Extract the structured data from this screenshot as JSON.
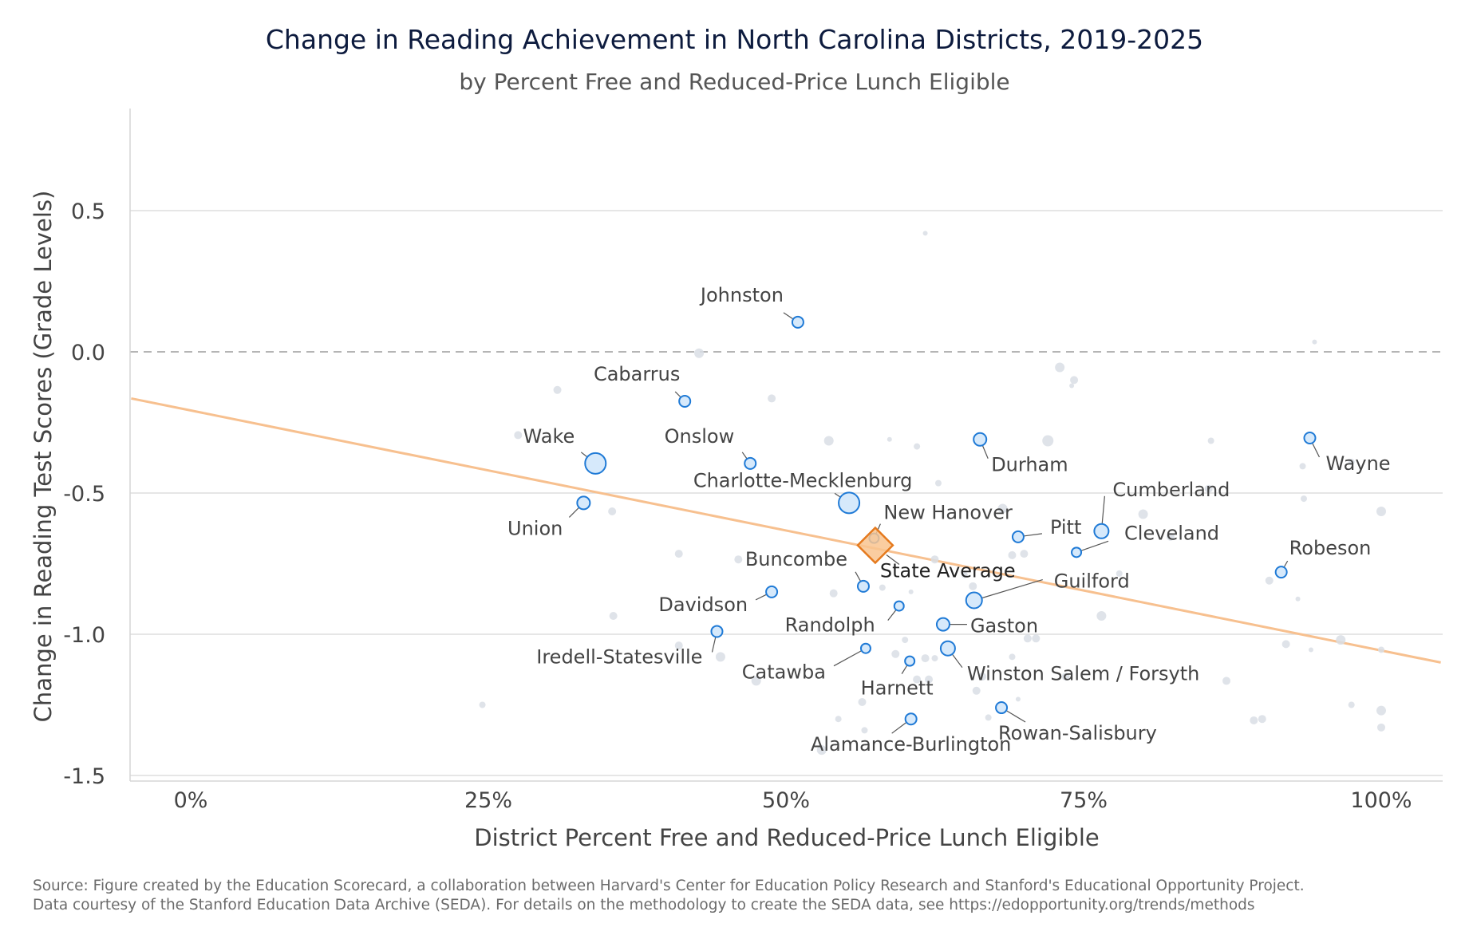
{
  "source": {
    "line1": "Source: Figure created by the Education Scorecard, a collaboration between Harvard's Center for Education Policy Research and Stanford's Educational Opportunity Project.",
    "line2": "Data courtesy of the Stanford Education Data Archive (SEDA). For details on the methodology to create the SEDA data, see https://edopportunity.org/trends/methods"
  },
  "colors": {
    "highlight_fill": "#d6e9fb",
    "highlight_stroke": "#1f7ad6",
    "background_point": "#d9dee5",
    "state_fill": "#f9c48f",
    "state_stroke": "#e57a1e",
    "trend": "#f7c08f",
    "grid": "#dddddd",
    "zero_line": "#b5b5b5"
  },
  "chart_data": {
    "type": "scatter",
    "title": "Change in Reading Achievement in North Carolina Districts, 2019-2025",
    "subtitle": "by Percent Free and Reduced-Price Lunch Eligible",
    "xlabel": "District Percent Free and Reduced-Price Lunch Eligible",
    "ylabel": "Change in Reading Test Scores (Grade Levels)",
    "xlim": [
      -0.05,
      1.05
    ],
    "ylim": [
      -1.52,
      0.87
    ],
    "xticks": [
      {
        "value": 0,
        "label": "0%"
      },
      {
        "value": 0.25,
        "label": "25%"
      },
      {
        "value": 0.5,
        "label": "50%"
      },
      {
        "value": 0.75,
        "label": "75%"
      },
      {
        "value": 1.0,
        "label": "100%"
      }
    ],
    "yticks": [
      {
        "value": 0.5,
        "label": "0.5"
      },
      {
        "value": 0.0,
        "label": "0.0"
      },
      {
        "value": -0.5,
        "label": "-0.5"
      },
      {
        "value": -1.0,
        "label": "-1.0"
      },
      {
        "value": -1.5,
        "label": "-1.5"
      }
    ],
    "grid": true,
    "reference_line": {
      "y": 0,
      "style": "dashed"
    },
    "trend_line": {
      "x": [
        -0.05,
        1.05
      ],
      "y": [
        -0.165,
        -1.1
      ]
    },
    "state_average": {
      "label": "State Average",
      "x": 0.575,
      "y": -0.685
    },
    "highlighted": [
      {
        "name": "Johnston",
        "x": 0.51,
        "y": 0.105,
        "size": 7
      },
      {
        "name": "Cabarrus",
        "x": 0.415,
        "y": -0.175,
        "size": 7
      },
      {
        "name": "Wake",
        "x": 0.34,
        "y": -0.395,
        "size": 13
      },
      {
        "name": "Onslow",
        "x": 0.47,
        "y": -0.395,
        "size": 7
      },
      {
        "name": "Union",
        "x": 0.33,
        "y": -0.535,
        "size": 8
      },
      {
        "name": "Charlotte-Mecklenburg",
        "x": 0.553,
        "y": -0.535,
        "size": 13
      },
      {
        "name": "New Hanover",
        "x": 0.574,
        "y": -0.66,
        "size": 6
      },
      {
        "name": "Durham",
        "x": 0.663,
        "y": -0.31,
        "size": 8
      },
      {
        "name": "Pitt",
        "x": 0.695,
        "y": -0.655,
        "size": 7
      },
      {
        "name": "Cumberland",
        "x": 0.765,
        "y": -0.635,
        "size": 9
      },
      {
        "name": "Cleveland",
        "x": 0.744,
        "y": -0.71,
        "size": 6
      },
      {
        "name": "Wayne",
        "x": 0.94,
        "y": -0.305,
        "size": 7
      },
      {
        "name": "Robeson",
        "x": 0.916,
        "y": -0.78,
        "size": 7
      },
      {
        "name": "Buncombe",
        "x": 0.565,
        "y": -0.83,
        "size": 7
      },
      {
        "name": "Guilford",
        "x": 0.658,
        "y": -0.88,
        "size": 10
      },
      {
        "name": "Davidson",
        "x": 0.488,
        "y": -0.85,
        "size": 7
      },
      {
        "name": "Randolph",
        "x": 0.595,
        "y": -0.9,
        "size": 6
      },
      {
        "name": "Gaston",
        "x": 0.632,
        "y": -0.965,
        "size": 8
      },
      {
        "name": "Iredell-Statesville",
        "x": 0.442,
        "y": -0.99,
        "size": 7
      },
      {
        "name": "Catawba",
        "x": 0.567,
        "y": -1.05,
        "size": 6
      },
      {
        "name": "Harnett",
        "x": 0.604,
        "y": -1.095,
        "size": 6
      },
      {
        "name": "Winston Salem / Forsyth",
        "x": 0.636,
        "y": -1.05,
        "size": 9
      },
      {
        "name": "Alamance-Burlington",
        "x": 0.605,
        "y": -1.3,
        "size": 7
      },
      {
        "name": "Rowan-Salisbury",
        "x": 0.681,
        "y": -1.26,
        "size": 7
      }
    ],
    "others": [
      {
        "x": 0.617,
        "y": 0.42,
        "size": 3
      },
      {
        "x": 0.944,
        "y": 0.035,
        "size": 3
      },
      {
        "x": 0.427,
        "y": -0.005,
        "size": 6
      },
      {
        "x": 0.308,
        "y": -0.135,
        "size": 5
      },
      {
        "x": 0.488,
        "y": -0.165,
        "size": 5
      },
      {
        "x": 0.73,
        "y": -0.055,
        "size": 6
      },
      {
        "x": 0.742,
        "y": -0.1,
        "size": 5
      },
      {
        "x": 0.74,
        "y": -0.12,
        "size": 3
      },
      {
        "x": 0.275,
        "y": -0.295,
        "size": 5
      },
      {
        "x": 0.536,
        "y": -0.315,
        "size": 6
      },
      {
        "x": 0.587,
        "y": -0.31,
        "size": 3
      },
      {
        "x": 0.61,
        "y": -0.335,
        "size": 4
      },
      {
        "x": 0.72,
        "y": -0.315,
        "size": 7
      },
      {
        "x": 0.857,
        "y": -0.315,
        "size": 4
      },
      {
        "x": 0.934,
        "y": -0.405,
        "size": 4
      },
      {
        "x": 0.975,
        "y": -0.39,
        "size": 4
      },
      {
        "x": 0.628,
        "y": -0.465,
        "size": 4
      },
      {
        "x": 0.855,
        "y": -0.485,
        "size": 5
      },
      {
        "x": 0.935,
        "y": -0.52,
        "size": 4
      },
      {
        "x": 1.0,
        "y": -0.565,
        "size": 6
      },
      {
        "x": 0.354,
        "y": -0.565,
        "size": 5
      },
      {
        "x": 0.8,
        "y": -0.575,
        "size": 6
      },
      {
        "x": 0.682,
        "y": -0.555,
        "size": 6
      },
      {
        "x": 0.823,
        "y": -0.655,
        "size": 5
      },
      {
        "x": 0.41,
        "y": -0.715,
        "size": 5
      },
      {
        "x": 0.46,
        "y": -0.735,
        "size": 5
      },
      {
        "x": 0.625,
        "y": -0.735,
        "size": 5
      },
      {
        "x": 0.69,
        "y": -0.72,
        "size": 5
      },
      {
        "x": 0.7,
        "y": -0.715,
        "size": 5
      },
      {
        "x": 0.78,
        "y": -0.785,
        "size": 4
      },
      {
        "x": 0.65,
        "y": -0.79,
        "size": 4
      },
      {
        "x": 0.657,
        "y": -0.83,
        "size": 5
      },
      {
        "x": 0.906,
        "y": -0.81,
        "size": 5
      },
      {
        "x": 0.93,
        "y": -0.875,
        "size": 3
      },
      {
        "x": 0.54,
        "y": -0.855,
        "size": 5
      },
      {
        "x": 0.581,
        "y": -0.835,
        "size": 4
      },
      {
        "x": 0.605,
        "y": -0.85,
        "size": 3
      },
      {
        "x": 0.355,
        "y": -0.935,
        "size": 5
      },
      {
        "x": 0.765,
        "y": -0.935,
        "size": 6
      },
      {
        "x": 0.703,
        "y": -1.015,
        "size": 5
      },
      {
        "x": 0.71,
        "y": -1.015,
        "size": 5
      },
      {
        "x": 0.966,
        "y": -1.02,
        "size": 6
      },
      {
        "x": 0.92,
        "y": -1.035,
        "size": 5
      },
      {
        "x": 0.941,
        "y": -1.055,
        "size": 3
      },
      {
        "x": 1.0,
        "y": -1.055,
        "size": 4
      },
      {
        "x": 0.41,
        "y": -1.04,
        "size": 5
      },
      {
        "x": 0.445,
        "y": -1.08,
        "size": 6
      },
      {
        "x": 0.6,
        "y": -1.02,
        "size": 4
      },
      {
        "x": 0.592,
        "y": -1.07,
        "size": 5
      },
      {
        "x": 0.617,
        "y": -1.085,
        "size": 5
      },
      {
        "x": 0.625,
        "y": -1.085,
        "size": 4
      },
      {
        "x": 0.69,
        "y": -1.08,
        "size": 4
      },
      {
        "x": 0.475,
        "y": -1.165,
        "size": 6
      },
      {
        "x": 0.61,
        "y": -1.16,
        "size": 5
      },
      {
        "x": 0.62,
        "y": -1.16,
        "size": 5
      },
      {
        "x": 0.665,
        "y": -1.15,
        "size": 5
      },
      {
        "x": 0.66,
        "y": -1.2,
        "size": 5
      },
      {
        "x": 0.735,
        "y": -1.15,
        "size": 5
      },
      {
        "x": 0.87,
        "y": -1.165,
        "size": 5
      },
      {
        "x": 0.564,
        "y": -1.24,
        "size": 5
      },
      {
        "x": 0.695,
        "y": -1.23,
        "size": 3
      },
      {
        "x": 0.245,
        "y": -1.25,
        "size": 4
      },
      {
        "x": 0.544,
        "y": -1.3,
        "size": 4
      },
      {
        "x": 0.67,
        "y": -1.295,
        "size": 4
      },
      {
        "x": 0.566,
        "y": -1.34,
        "size": 4
      },
      {
        "x": 0.53,
        "y": -1.41,
        "size": 6
      },
      {
        "x": 0.975,
        "y": -1.25,
        "size": 4
      },
      {
        "x": 1.0,
        "y": -1.27,
        "size": 6
      },
      {
        "x": 1.0,
        "y": -1.33,
        "size": 5
      },
      {
        "x": 0.893,
        "y": -1.305,
        "size": 5
      },
      {
        "x": 0.9,
        "y": -1.3,
        "size": 5
      }
    ]
  }
}
